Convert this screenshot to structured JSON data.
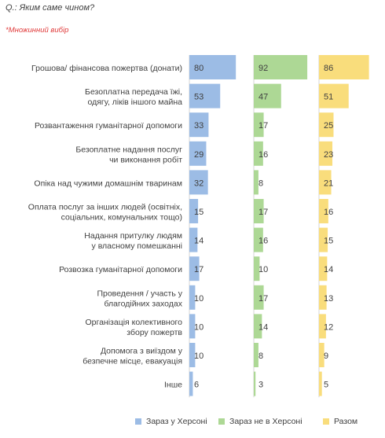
{
  "header": {
    "question": "Q.: Яким саме чином?",
    "note": "*Множинний вибір"
  },
  "colors": {
    "series_0": "#9cbce5",
    "series_1": "#add895",
    "series_2": "#f9dd7c"
  },
  "chart_data": {
    "type": "bar",
    "orientation": "horizontal",
    "layout": "small-multiples",
    "value_labels": true,
    "categories": [
      [
        "Грошова/ фінансова пожертва (донати)"
      ],
      [
        "Безоплатна передача їжі,",
        "одягу, ліків іншого майна"
      ],
      [
        "Розвантаження гуманітарної допомоги"
      ],
      [
        "Безоплатне надання послуг",
        "чи виконання робіт"
      ],
      [
        "Опіка над чужими домашнім тваринам"
      ],
      [
        "Оплата послуг за інших людей (освітніх,",
        "соціальних, комунальних тощо)"
      ],
      [
        "Надання притулку людям",
        "у власному помешканні"
      ],
      [
        "Розвозка гуманітарної допомоги"
      ],
      [
        "Проведення / участь у",
        "благодійних заходах"
      ],
      [
        "Організація колективного",
        "збору пожертв"
      ],
      [
        "Допомога з виїздом у",
        "безпечне місце, евакуація"
      ],
      [
        "Інше"
      ]
    ],
    "series": [
      {
        "name": "Зараз у Херсоні",
        "values": [
          80,
          53,
          33,
          29,
          32,
          15,
          14,
          17,
          10,
          10,
          10,
          6
        ]
      },
      {
        "name": "Зараз не в Херсоні",
        "values": [
          92,
          47,
          17,
          16,
          8,
          17,
          16,
          10,
          17,
          14,
          8,
          3
        ]
      },
      {
        "name": "Разом",
        "values": [
          86,
          51,
          25,
          23,
          21,
          16,
          15,
          14,
          13,
          12,
          9,
          5
        ]
      }
    ],
    "xlim": [
      0,
      100
    ]
  }
}
